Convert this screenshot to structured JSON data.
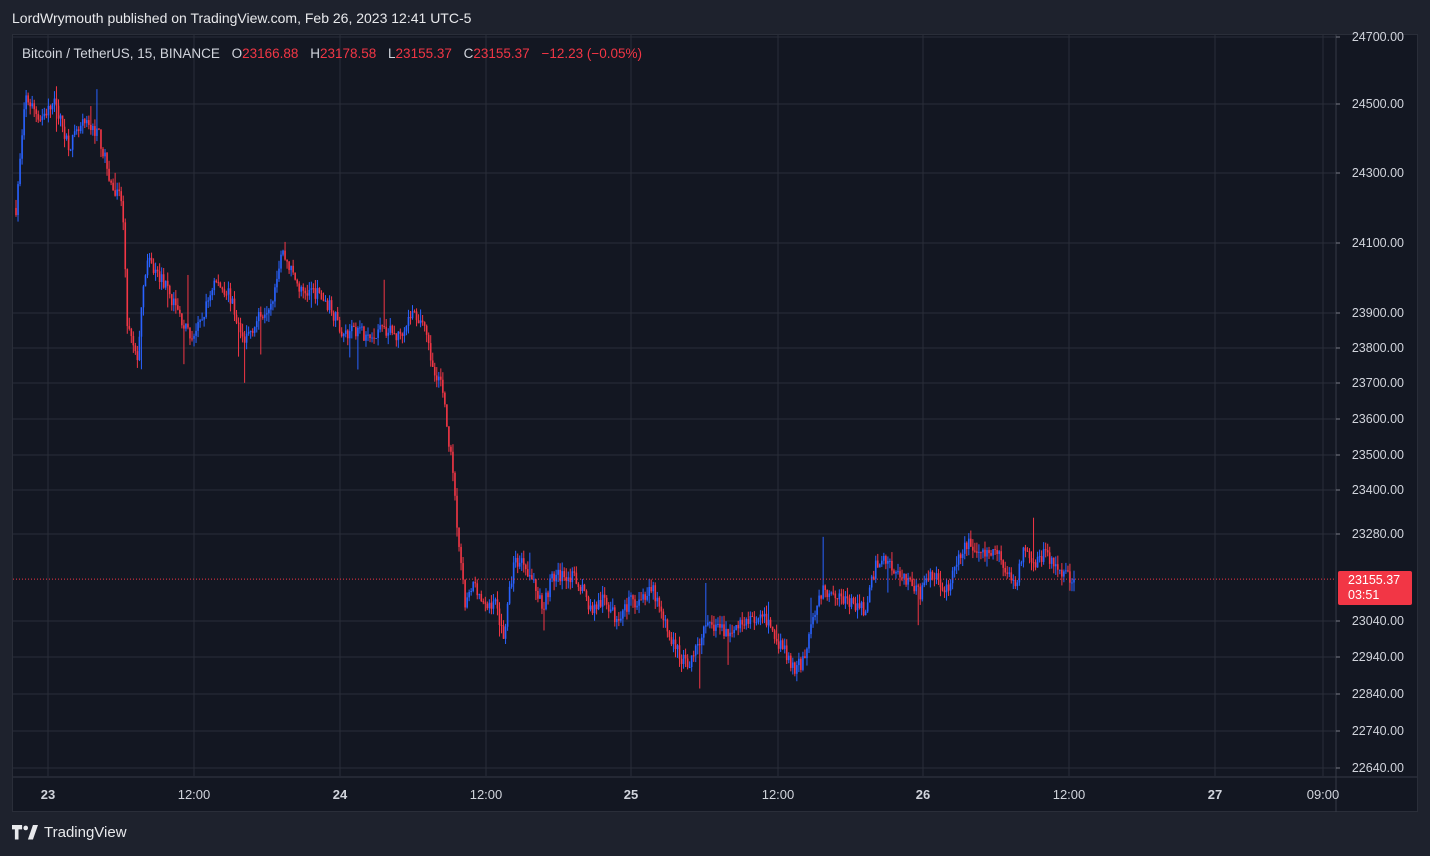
{
  "header": {
    "published_text": "LordWrymouth published on TradingView.com, Feb 26, 2023 12:41 UTC-5"
  },
  "legend": {
    "symbol": "Bitcoin / TetherUS, 15, BINANCE",
    "open_label": "O",
    "open": "23166.88",
    "high_label": "H",
    "high": "23178.58",
    "low_label": "L",
    "low": "23155.37",
    "close_label": "C",
    "close": "23155.37",
    "change": "−12.23 (−0.05%)"
  },
  "current_price": {
    "price": "23155.37",
    "countdown": "03:51"
  },
  "footer": {
    "brand": "TradingView"
  },
  "colors": {
    "up": "#2962ff",
    "down": "#f23645",
    "background": "#131722",
    "grid": "#2a2e39"
  },
  "chart_data": {
    "type": "candlestick",
    "symbol": "BTCUSDT",
    "interval": "15",
    "exchange": "BINANCE",
    "y_ticks": [
      "24700.00",
      "24500.00",
      "24300.00",
      "24100.00",
      "23900.00",
      "23800.00",
      "23700.00",
      "23600.00",
      "23500.00",
      "23400.00",
      "23280.00",
      "23040.00",
      "22940.00",
      "22840.00",
      "22740.00",
      "22640.00"
    ],
    "x_ticks": [
      {
        "label": "23",
        "bold": true
      },
      {
        "label": "12:00",
        "bold": false
      },
      {
        "label": "24",
        "bold": true
      },
      {
        "label": "12:00",
        "bold": false
      },
      {
        "label": "25",
        "bold": true
      },
      {
        "label": "12:00",
        "bold": false
      },
      {
        "label": "26",
        "bold": true
      },
      {
        "label": "12:00",
        "bold": false
      },
      {
        "label": "27",
        "bold": true
      },
      {
        "label": "09:00",
        "bold": false
      }
    ],
    "last_price": 23155.37,
    "price_path": [
      {
        "t": 0,
        "p": 24200
      },
      {
        "t": 4,
        "p": 24520
      },
      {
        "t": 10,
        "p": 24460
      },
      {
        "t": 16,
        "p": 24500
      },
      {
        "t": 22,
        "p": 24380
      },
      {
        "t": 28,
        "p": 24440
      },
      {
        "t": 34,
        "p": 24420
      },
      {
        "t": 40,
        "p": 24250
      },
      {
        "t": 44,
        "p": 24220
      },
      {
        "t": 46,
        "p": 23870
      },
      {
        "t": 50,
        "p": 23760
      },
      {
        "t": 54,
        "p": 24050
      },
      {
        "t": 60,
        "p": 24000
      },
      {
        "t": 66,
        "p": 23920
      },
      {
        "t": 72,
        "p": 23830
      },
      {
        "t": 76,
        "p": 23860
      },
      {
        "t": 82,
        "p": 23990
      },
      {
        "t": 88,
        "p": 23960
      },
      {
        "t": 94,
        "p": 23820
      },
      {
        "t": 100,
        "p": 23880
      },
      {
        "t": 106,
        "p": 23940
      },
      {
        "t": 110,
        "p": 24080
      },
      {
        "t": 118,
        "p": 23960
      },
      {
        "t": 124,
        "p": 23960
      },
      {
        "t": 130,
        "p": 23920
      },
      {
        "t": 136,
        "p": 23830
      },
      {
        "t": 142,
        "p": 23860
      },
      {
        "t": 146,
        "p": 23820
      },
      {
        "t": 152,
        "p": 23860
      },
      {
        "t": 158,
        "p": 23830
      },
      {
        "t": 164,
        "p": 23900
      },
      {
        "t": 168,
        "p": 23880
      },
      {
        "t": 172,
        "p": 23760
      },
      {
        "t": 176,
        "p": 23700
      },
      {
        "t": 180,
        "p": 23500
      },
      {
        "t": 184,
        "p": 23200
      },
      {
        "t": 186,
        "p": 23080
      },
      {
        "t": 190,
        "p": 23150
      },
      {
        "t": 194,
        "p": 23070
      },
      {
        "t": 198,
        "p": 23100
      },
      {
        "t": 202,
        "p": 23000
      },
      {
        "t": 206,
        "p": 23200
      },
      {
        "t": 210,
        "p": 23210
      },
      {
        "t": 214,
        "p": 23150
      },
      {
        "t": 218,
        "p": 23080
      },
      {
        "t": 222,
        "p": 23160
      },
      {
        "t": 228,
        "p": 23170
      },
      {
        "t": 234,
        "p": 23140
      },
      {
        "t": 238,
        "p": 23070
      },
      {
        "t": 244,
        "p": 23100
      },
      {
        "t": 248,
        "p": 23050
      },
      {
        "t": 254,
        "p": 23090
      },
      {
        "t": 260,
        "p": 23110
      },
      {
        "t": 264,
        "p": 23120
      },
      {
        "t": 268,
        "p": 23040
      },
      {
        "t": 272,
        "p": 22980
      },
      {
        "t": 276,
        "p": 22930
      },
      {
        "t": 280,
        "p": 22930
      },
      {
        "t": 284,
        "p": 23010
      },
      {
        "t": 290,
        "p": 23030
      },
      {
        "t": 296,
        "p": 23000
      },
      {
        "t": 302,
        "p": 23050
      },
      {
        "t": 306,
        "p": 23030
      },
      {
        "t": 310,
        "p": 23050
      },
      {
        "t": 314,
        "p": 22990
      },
      {
        "t": 318,
        "p": 22960
      },
      {
        "t": 322,
        "p": 22900
      },
      {
        "t": 326,
        "p": 22930
      },
      {
        "t": 330,
        "p": 23060
      },
      {
        "t": 334,
        "p": 23120
      },
      {
        "t": 338,
        "p": 23130
      },
      {
        "t": 344,
        "p": 23090
      },
      {
        "t": 348,
        "p": 23080
      },
      {
        "t": 352,
        "p": 23070
      },
      {
        "t": 356,
        "p": 23200
      },
      {
        "t": 360,
        "p": 23210
      },
      {
        "t": 366,
        "p": 23170
      },
      {
        "t": 370,
        "p": 23150
      },
      {
        "t": 374,
        "p": 23110
      },
      {
        "t": 378,
        "p": 23170
      },
      {
        "t": 382,
        "p": 23150
      },
      {
        "t": 386,
        "p": 23130
      },
      {
        "t": 390,
        "p": 23200
      },
      {
        "t": 394,
        "p": 23260
      },
      {
        "t": 398,
        "p": 23230
      },
      {
        "t": 402,
        "p": 23220
      },
      {
        "t": 406,
        "p": 23240
      },
      {
        "t": 410,
        "p": 23170
      },
      {
        "t": 414,
        "p": 23150
      },
      {
        "t": 418,
        "p": 23250
      },
      {
        "t": 422,
        "p": 23200
      },
      {
        "t": 426,
        "p": 23230
      },
      {
        "t": 430,
        "p": 23190
      },
      {
        "t": 434,
        "p": 23180
      },
      {
        "t": 438,
        "p": 23155
      }
    ],
    "bars_total": 524
  }
}
